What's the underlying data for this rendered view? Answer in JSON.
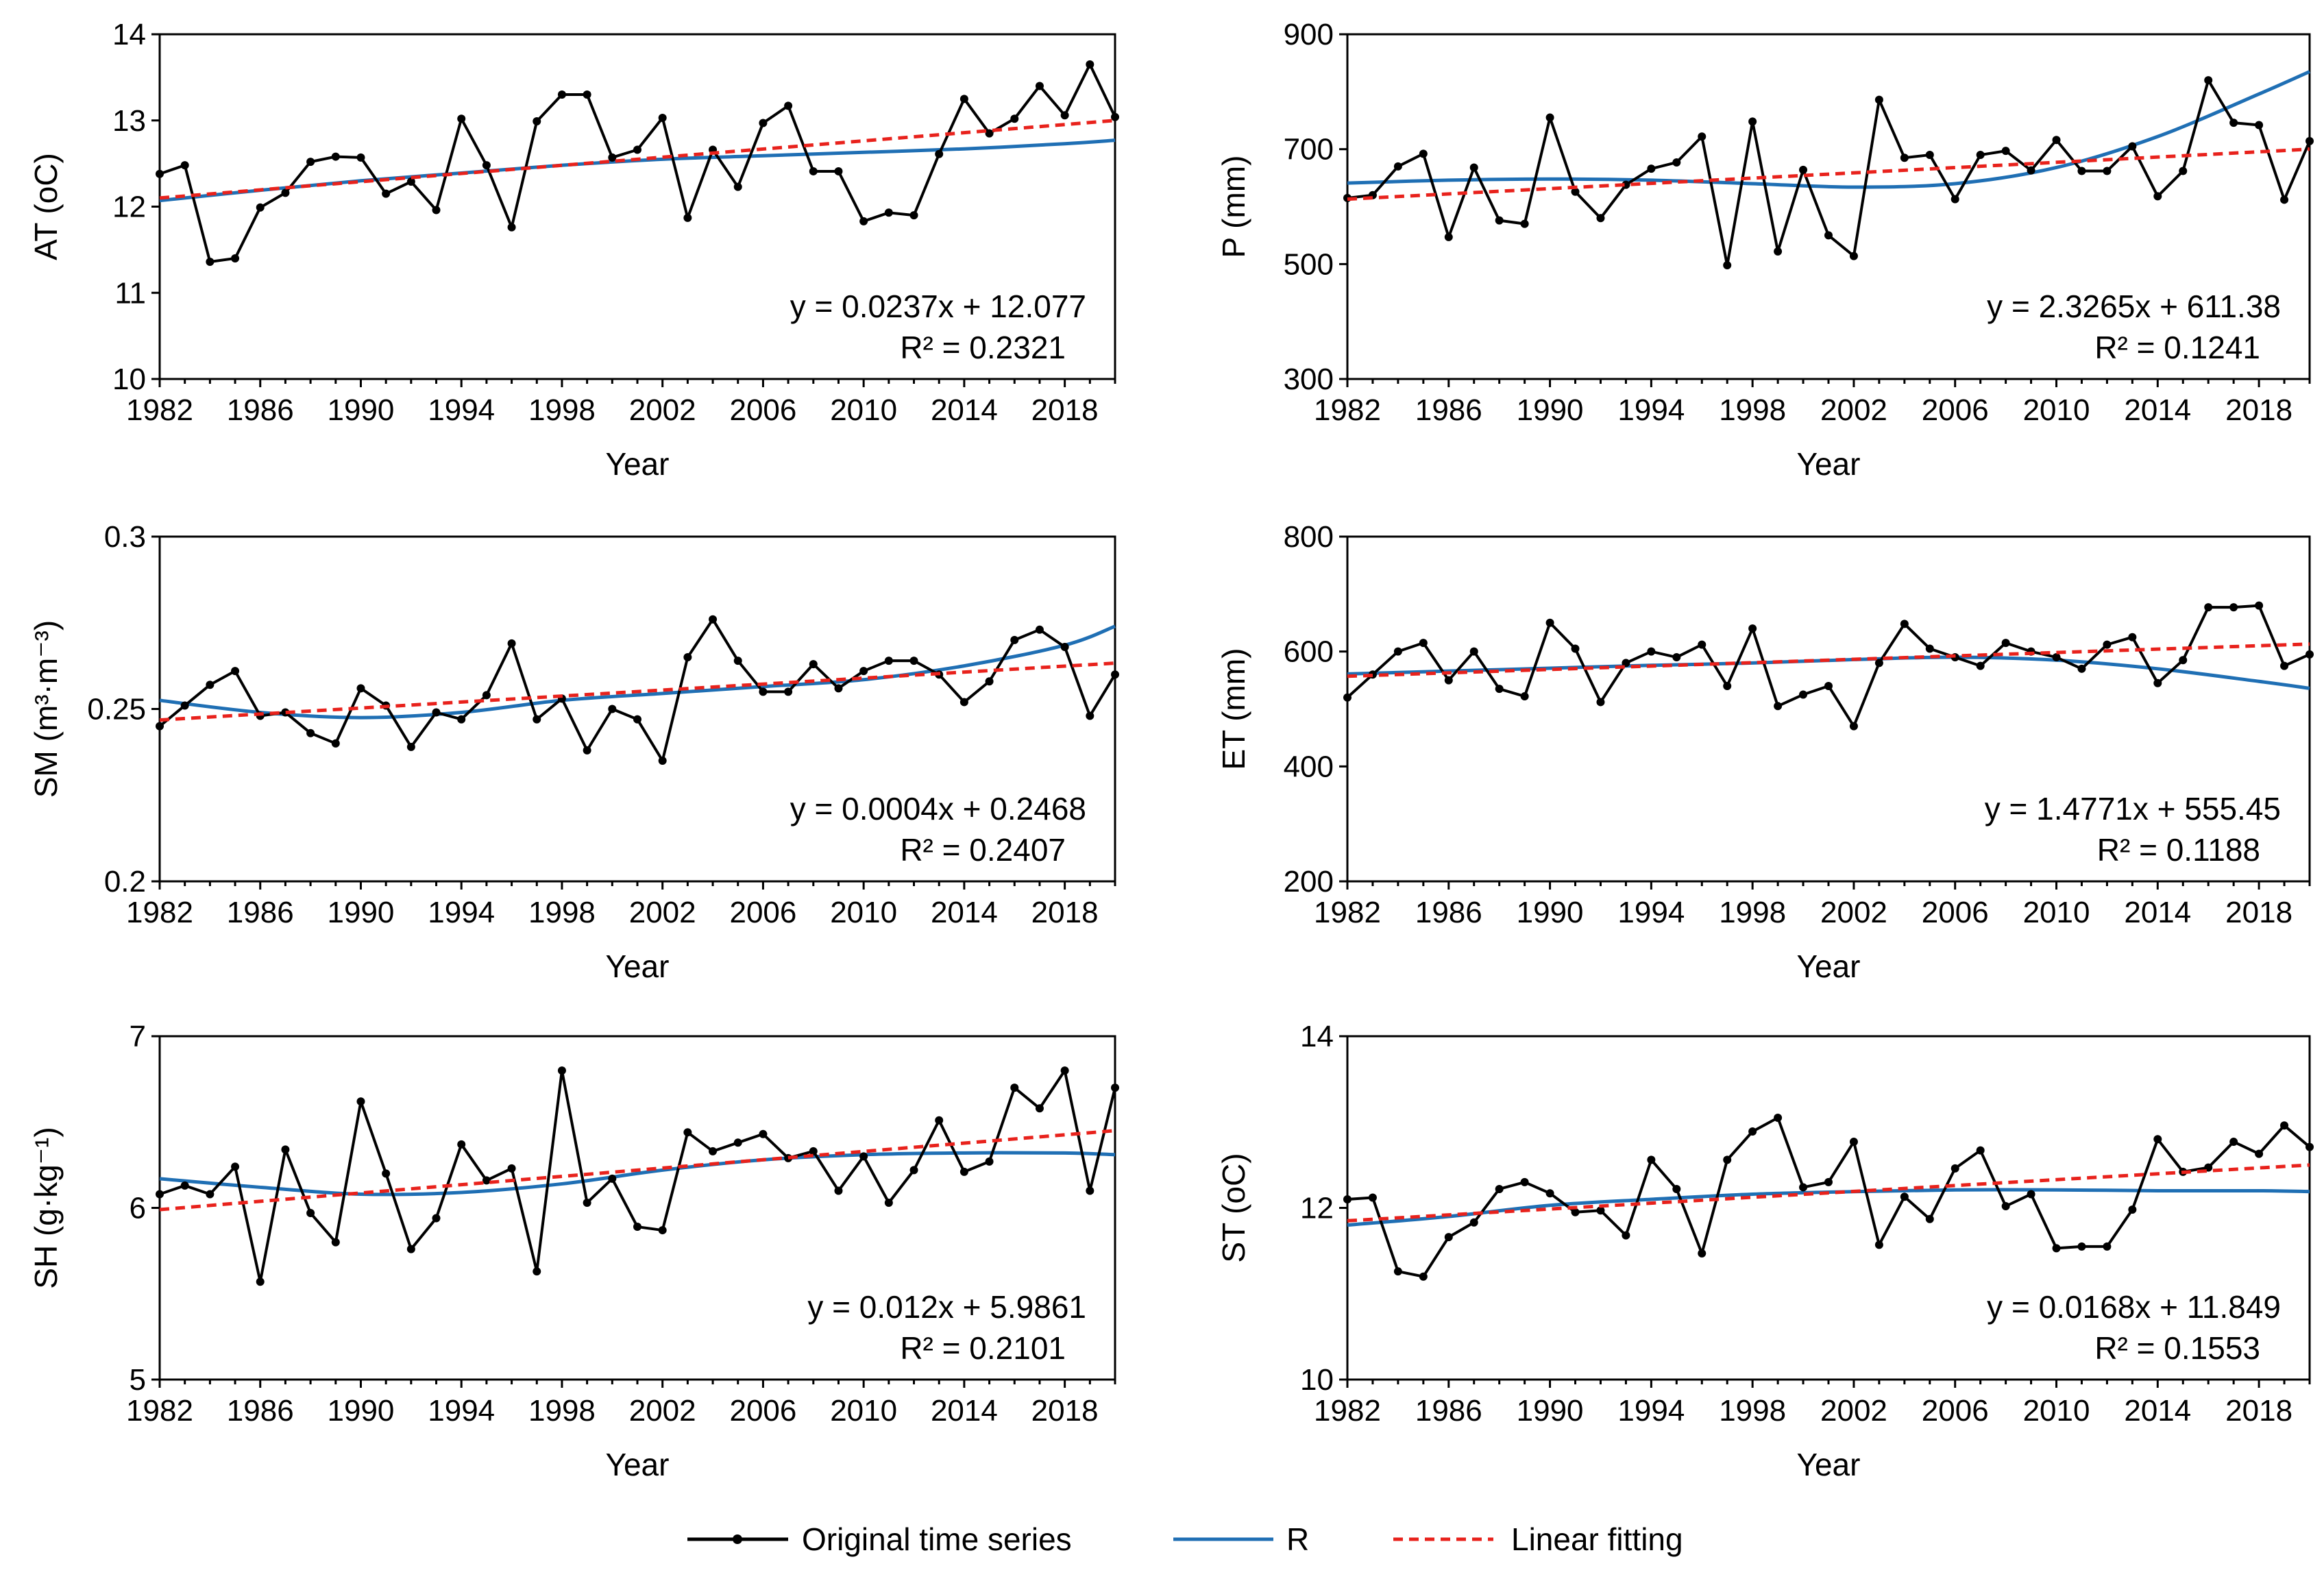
{
  "legend": {
    "original": "Original time series",
    "r": "R",
    "linear": "Linear fitting"
  },
  "colors": {
    "original": "#000000",
    "r": "#1f6fb4",
    "linear": "#e8221c"
  },
  "chart_data": [
    {
      "type": "line",
      "ylabel": "AT (oC)",
      "xlabel": "Year",
      "ylim": [
        10,
        14
      ],
      "yticks": [
        10,
        11,
        12,
        13,
        14
      ],
      "xticks": [
        1982,
        1986,
        1990,
        1994,
        1998,
        2002,
        2006,
        2010,
        2014,
        2018
      ],
      "xlim": [
        1982,
        2020
      ],
      "equation": "y = 0.0237x + 12.077",
      "r2": "R² = 0.2321",
      "years": [
        1982,
        1983,
        1984,
        1985,
        1986,
        1987,
        1988,
        1989,
        1990,
        1991,
        1992,
        1993,
        1994,
        1995,
        1996,
        1997,
        1998,
        1999,
        2000,
        2001,
        2002,
        2003,
        2004,
        2005,
        2006,
        2007,
        2008,
        2009,
        2010,
        2011,
        2012,
        2013,
        2014,
        2015,
        2016,
        2017,
        2018,
        2019,
        2020
      ],
      "original": [
        12.38,
        12.48,
        11.36,
        11.4,
        11.99,
        12.16,
        12.52,
        12.58,
        12.57,
        12.15,
        12.29,
        11.96,
        13.02,
        12.48,
        11.76,
        12.99,
        13.3,
        13.3,
        12.57,
        12.66,
        13.03,
        11.87,
        12.66,
        12.23,
        12.97,
        13.17,
        12.41,
        12.41,
        11.83,
        11.93,
        11.9,
        12.61,
        13.25,
        12.85,
        13.02,
        13.4,
        13.06,
        13.65,
        13.04
      ],
      "r_years": [
        1982,
        1986,
        1990,
        1994,
        1998,
        2002,
        2006,
        2010,
        2014,
        2018,
        2020
      ],
      "r": [
        12.07,
        12.19,
        12.3,
        12.39,
        12.48,
        12.55,
        12.59,
        12.63,
        12.67,
        12.73,
        12.77
      ],
      "linear_start": 12.1,
      "linear_end": 13.0
    },
    {
      "type": "line",
      "ylabel": "P (mm)",
      "xlabel": "Year",
      "ylim": [
        300,
        900
      ],
      "yticks": [
        300,
        500,
        700,
        900
      ],
      "xticks": [
        1982,
        1986,
        1990,
        1994,
        1998,
        2002,
        2006,
        2010,
        2014,
        2018
      ],
      "xlim": [
        1982,
        2020
      ],
      "equation": "y = 2.3265x + 611.38",
      "r2": "R² = 0.1241",
      "years": [
        1982,
        1983,
        1984,
        1985,
        1986,
        1987,
        1988,
        1989,
        1990,
        1991,
        1992,
        1993,
        1994,
        1995,
        1996,
        1997,
        1998,
        1999,
        2000,
        2001,
        2002,
        2003,
        2004,
        2005,
        2006,
        2007,
        2008,
        2009,
        2010,
        2011,
        2012,
        2013,
        2014,
        2015,
        2016,
        2017,
        2018,
        2019,
        2020
      ],
      "original": [
        615,
        620,
        670,
        692,
        547,
        668,
        576,
        570,
        755,
        626,
        580,
        638,
        666,
        677,
        722,
        498,
        748,
        522,
        664,
        550,
        514,
        786,
        685,
        690,
        613,
        690,
        697,
        663,
        716,
        662,
        662,
        705,
        618,
        662,
        820,
        746,
        742,
        612,
        714
      ],
      "r_years": [
        1982,
        1986,
        1990,
        1994,
        1998,
        2002,
        2006,
        2010,
        2014,
        2018,
        2020
      ],
      "r": [
        641,
        646,
        648,
        646,
        640,
        634,
        640,
        668,
        722,
        796,
        835
      ],
      "linear_start": 613,
      "linear_end": 700
    },
    {
      "type": "line",
      "ylabel": "SM (m³·m⁻³)",
      "xlabel": "Year",
      "ylim": [
        0.2,
        0.3
      ],
      "yticks": [
        0.2,
        0.25,
        0.3
      ],
      "xticks": [
        1982,
        1986,
        1990,
        1994,
        1998,
        2002,
        2006,
        2010,
        2014,
        2018
      ],
      "xlim": [
        1982,
        2020
      ],
      "equation": "y = 0.0004x + 0.2468",
      "r2": "R² = 0.2407",
      "years": [
        1982,
        1983,
        1984,
        1985,
        1986,
        1987,
        1988,
        1989,
        1990,
        1991,
        1992,
        1993,
        1994,
        1995,
        1996,
        1997,
        1998,
        1999,
        2000,
        2001,
        2002,
        2003,
        2004,
        2005,
        2006,
        2007,
        2008,
        2009,
        2010,
        2011,
        2012,
        2013,
        2014,
        2015,
        2016,
        2017,
        2018,
        2019,
        2020
      ],
      "original": [
        0.245,
        0.251,
        0.257,
        0.261,
        0.248,
        0.249,
        0.243,
        0.24,
        0.256,
        0.251,
        0.239,
        0.249,
        0.247,
        0.254,
        0.269,
        0.247,
        0.253,
        0.238,
        0.25,
        0.247,
        0.235,
        0.265,
        0.276,
        0.264,
        0.255,
        0.255,
        0.263,
        0.256,
        0.261,
        0.264,
        0.264,
        0.26,
        0.252,
        0.258,
        0.27,
        0.273,
        0.268,
        0.248,
        0.26
      ],
      "r_years": [
        1982,
        1986,
        1990,
        1994,
        1998,
        2002,
        2006,
        2010,
        2014,
        2018,
        2020
      ],
      "r": [
        0.2525,
        0.249,
        0.2475,
        0.249,
        0.2525,
        0.2545,
        0.2565,
        0.2585,
        0.2625,
        0.2685,
        0.274
      ],
      "linear_start": 0.2468,
      "linear_end": 0.2633
    },
    {
      "type": "line",
      "ylabel": "ET (mm)",
      "xlabel": "Year",
      "ylim": [
        200,
        800
      ],
      "yticks": [
        200,
        400,
        600,
        800
      ],
      "xticks": [
        1982,
        1986,
        1990,
        1994,
        1998,
        2002,
        2006,
        2010,
        2014,
        2018
      ],
      "xlim": [
        1982,
        2020
      ],
      "equation": "y = 1.4771x + 555.45",
      "r2": "R² = 0.1188",
      "years": [
        1982,
        1983,
        1984,
        1985,
        1986,
        1987,
        1988,
        1989,
        1990,
        1991,
        1992,
        1993,
        1994,
        1995,
        1996,
        1997,
        1998,
        1999,
        2000,
        2001,
        2002,
        2003,
        2004,
        2005,
        2006,
        2007,
        2008,
        2009,
        2010,
        2011,
        2012,
        2013,
        2014,
        2015,
        2016,
        2017,
        2018,
        2019,
        2020
      ],
      "original": [
        520,
        560,
        600,
        615,
        550,
        600,
        535,
        522,
        650,
        605,
        512,
        580,
        600,
        590,
        612,
        540,
        640,
        505,
        525,
        540,
        470,
        580,
        648,
        605,
        590,
        575,
        615,
        600,
        590,
        570,
        612,
        625,
        545,
        585,
        677,
        677,
        680,
        575,
        595
      ],
      "r_years": [
        1982,
        1986,
        1990,
        1994,
        1998,
        2002,
        2006,
        2010,
        2014,
        2018,
        2020
      ],
      "r": [
        561,
        566,
        571,
        576,
        580,
        586,
        590,
        585,
        570,
        548,
        536
      ],
      "linear_start": 557,
      "linear_end": 613
    },
    {
      "type": "line",
      "ylabel": "SH (g·kg⁻¹)",
      "xlabel": "Year",
      "ylim": [
        5,
        7
      ],
      "yticks": [
        5,
        6,
        7
      ],
      "xticks": [
        1982,
        1986,
        1990,
        1994,
        1998,
        2002,
        2006,
        2010,
        2014,
        2018
      ],
      "xlim": [
        1982,
        2020
      ],
      "equation": "y = 0.012x + 5.9861",
      "r2": "R² = 0.2101",
      "years": [
        1982,
        1983,
        1984,
        1985,
        1986,
        1987,
        1988,
        1989,
        1990,
        1991,
        1992,
        1993,
        1994,
        1995,
        1996,
        1997,
        1998,
        1999,
        2000,
        2001,
        2002,
        2003,
        2004,
        2005,
        2006,
        2007,
        2008,
        2009,
        2010,
        2011,
        2012,
        2013,
        2014,
        2015,
        2016,
        2017,
        2018,
        2019,
        2020
      ],
      "original": [
        6.08,
        6.13,
        6.08,
        6.24,
        5.57,
        6.34,
        5.97,
        5.8,
        6.62,
        6.2,
        5.76,
        5.94,
        6.37,
        6.16,
        6.23,
        5.63,
        6.8,
        6.03,
        6.17,
        5.89,
        5.87,
        6.44,
        6.33,
        6.38,
        6.43,
        6.29,
        6.33,
        6.1,
        6.3,
        6.03,
        6.22,
        6.51,
        6.21,
        6.27,
        6.7,
        6.58,
        6.8,
        6.1,
        6.7
      ],
      "r_years": [
        1982,
        1986,
        1990,
        1994,
        1998,
        2002,
        2006,
        2010,
        2014,
        2018,
        2020
      ],
      "r": [
        6.17,
        6.12,
        6.08,
        6.09,
        6.14,
        6.22,
        6.28,
        6.31,
        6.32,
        6.32,
        6.31
      ],
      "linear_start": 5.99,
      "linear_end": 6.45
    },
    {
      "type": "line",
      "ylabel": "ST (oC)",
      "xlabel": "Year",
      "ylim": [
        10,
        14
      ],
      "yticks": [
        10,
        12,
        14
      ],
      "xticks": [
        1982,
        1986,
        1990,
        1994,
        1998,
        2002,
        2006,
        2010,
        2014,
        2018
      ],
      "xlim": [
        1982,
        2020
      ],
      "equation": "y = 0.0168x + 11.849",
      "r2": "R² = 0.1553",
      "years": [
        1982,
        1983,
        1984,
        1985,
        1986,
        1987,
        1988,
        1989,
        1990,
        1991,
        1992,
        1993,
        1994,
        1995,
        1996,
        1997,
        1998,
        1999,
        2000,
        2001,
        2002,
        2003,
        2004,
        2005,
        2006,
        2007,
        2008,
        2009,
        2010,
        2011,
        2012,
        2013,
        2014,
        2015,
        2016,
        2017,
        2018,
        2019,
        2020
      ],
      "original": [
        12.1,
        12.12,
        11.26,
        11.2,
        11.66,
        11.83,
        12.22,
        12.3,
        12.17,
        11.95,
        11.97,
        11.68,
        12.56,
        12.22,
        11.47,
        12.56,
        12.89,
        13.05,
        12.24,
        12.3,
        12.77,
        11.57,
        12.13,
        11.87,
        12.46,
        12.67,
        12.02,
        12.16,
        11.53,
        11.55,
        11.55,
        11.98,
        12.8,
        12.42,
        12.47,
        12.77,
        12.63,
        12.96,
        12.71
      ],
      "r_years": [
        1982,
        1986,
        1990,
        1994,
        1998,
        2002,
        2006,
        2010,
        2014,
        2018,
        2020
      ],
      "r": [
        11.8,
        11.9,
        12.03,
        12.1,
        12.16,
        12.19,
        12.21,
        12.21,
        12.2,
        12.2,
        12.19
      ],
      "linear_start": 11.85,
      "linear_end": 12.5
    }
  ]
}
